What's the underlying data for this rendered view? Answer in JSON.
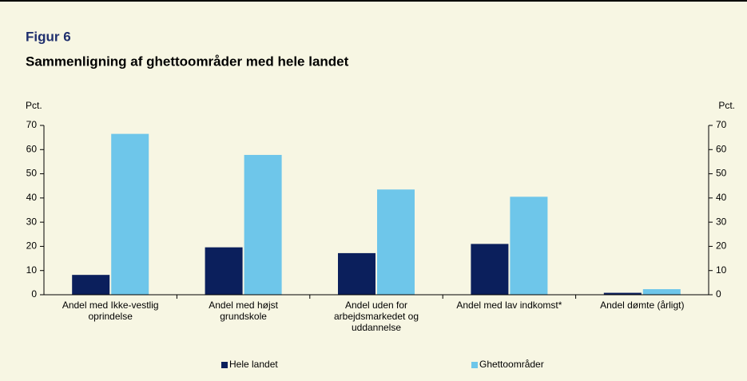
{
  "chart_data": {
    "type": "bar",
    "title": "Figur 6",
    "subtitle": "Sammenligning af ghettoområder med hele landet",
    "y_label": "Pct.",
    "y2_label": "Pct.",
    "categories": [
      "Andel med Ikke-vestlig\noprindelse",
      "Andel med højst\ngrundskole",
      "Andel uden for\narbejdsmarkedet og\nuddannelse",
      "Andel med lav indkomst*",
      "Andel dømte (årligt)"
    ],
    "series": [
      {
        "name": "Hele landet",
        "color": "#0b1f5c",
        "values": [
          8.2,
          19.6,
          17.2,
          21,
          0.8
        ]
      },
      {
        "name": "Ghettoområder",
        "color": "#6ec6ea",
        "values": [
          66.5,
          57.8,
          43.5,
          40.5,
          2.3
        ]
      }
    ],
    "ylim": [
      0,
      70
    ],
    "yticks": [
      0,
      10,
      20,
      30,
      40,
      50,
      60,
      70
    ],
    "y2lim": [
      0,
      70
    ],
    "y2ticks": [
      0,
      10,
      20,
      30,
      40,
      50,
      60,
      70
    ],
    "grid": false,
    "legend": "bottom"
  }
}
